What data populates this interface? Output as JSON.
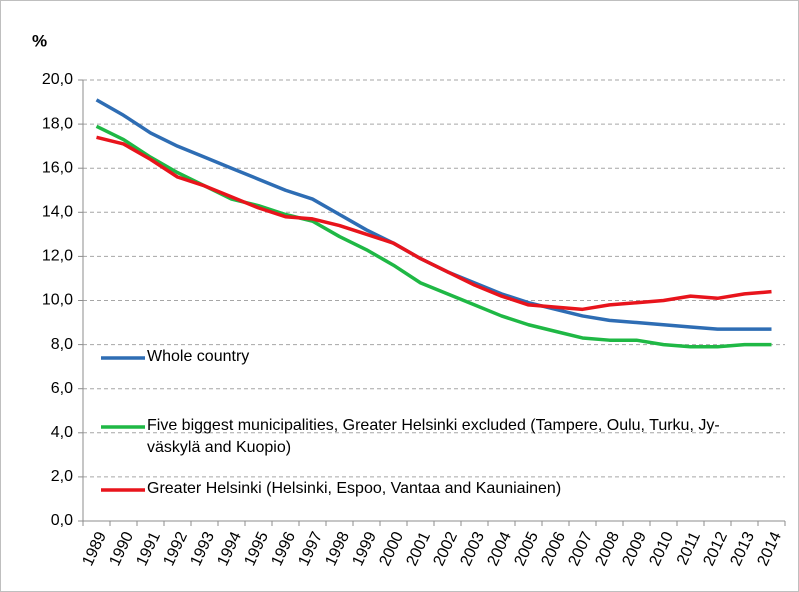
{
  "chart_data": {
    "type": "line",
    "y_label": "%",
    "categories": [
      "1989",
      "1990",
      "1991",
      "1992",
      "1993",
      "1994",
      "1995",
      "1996",
      "1997",
      "1998",
      "1999",
      "2000",
      "2001",
      "2002",
      "2003",
      "2004",
      "2005",
      "2006",
      "2007",
      "2008",
      "2009",
      "2010",
      "2011",
      "2012",
      "2013",
      "2014"
    ],
    "series": [
      {
        "name": "Whole country",
        "color": "#2e6db4",
        "values": [
          19.1,
          18.4,
          17.6,
          17.0,
          16.5,
          16.0,
          15.5,
          15.0,
          14.6,
          13.9,
          13.2,
          12.6,
          11.9,
          11.3,
          10.8,
          10.3,
          9.9,
          9.6,
          9.3,
          9.1,
          9.0,
          8.9,
          8.8,
          8.7,
          8.7,
          8.7
        ]
      },
      {
        "name": "Five biggest municipalities, Greater Helsinki excluded (Tampere, Oulu, Turku, Jy-väskylä and Kuopio)",
        "color": "#1fb845",
        "values": [
          17.9,
          17.3,
          16.5,
          15.8,
          15.2,
          14.6,
          14.3,
          13.9,
          13.6,
          12.9,
          12.3,
          11.6,
          10.8,
          10.3,
          9.8,
          9.3,
          8.9,
          8.6,
          8.3,
          8.2,
          8.2,
          8.0,
          7.9,
          7.9,
          8.0,
          8.0
        ]
      },
      {
        "name": "Greater Helsinki (Helsinki, Espoo, Vantaa and Kauniainen)",
        "color": "#e8141c",
        "values": [
          17.4,
          17.1,
          16.4,
          15.6,
          15.2,
          14.7,
          14.2,
          13.8,
          13.7,
          13.4,
          13.0,
          12.6,
          11.9,
          11.3,
          10.7,
          10.2,
          9.8,
          9.7,
          9.6,
          9.8,
          9.9,
          10.0,
          10.2,
          10.1,
          10.3,
          10.4
        ]
      }
    ],
    "ylim": [
      0,
      20
    ],
    "yticks": [
      {
        "value": 0,
        "label": "0,0"
      },
      {
        "value": 2,
        "label": "2,0"
      },
      {
        "value": 4,
        "label": "4,0"
      },
      {
        "value": 6,
        "label": "6,0"
      },
      {
        "value": 8,
        "label": "8,0"
      },
      {
        "value": 10,
        "label": "10,0"
      },
      {
        "value": 12,
        "label": "12,0"
      },
      {
        "value": 14,
        "label": "14,0"
      },
      {
        "value": 16,
        "label": "16,0"
      },
      {
        "value": 18,
        "label": "18,0"
      },
      {
        "value": 20,
        "label": "20,0"
      }
    ],
    "grid": true,
    "legend": "inside-bottom-left"
  }
}
